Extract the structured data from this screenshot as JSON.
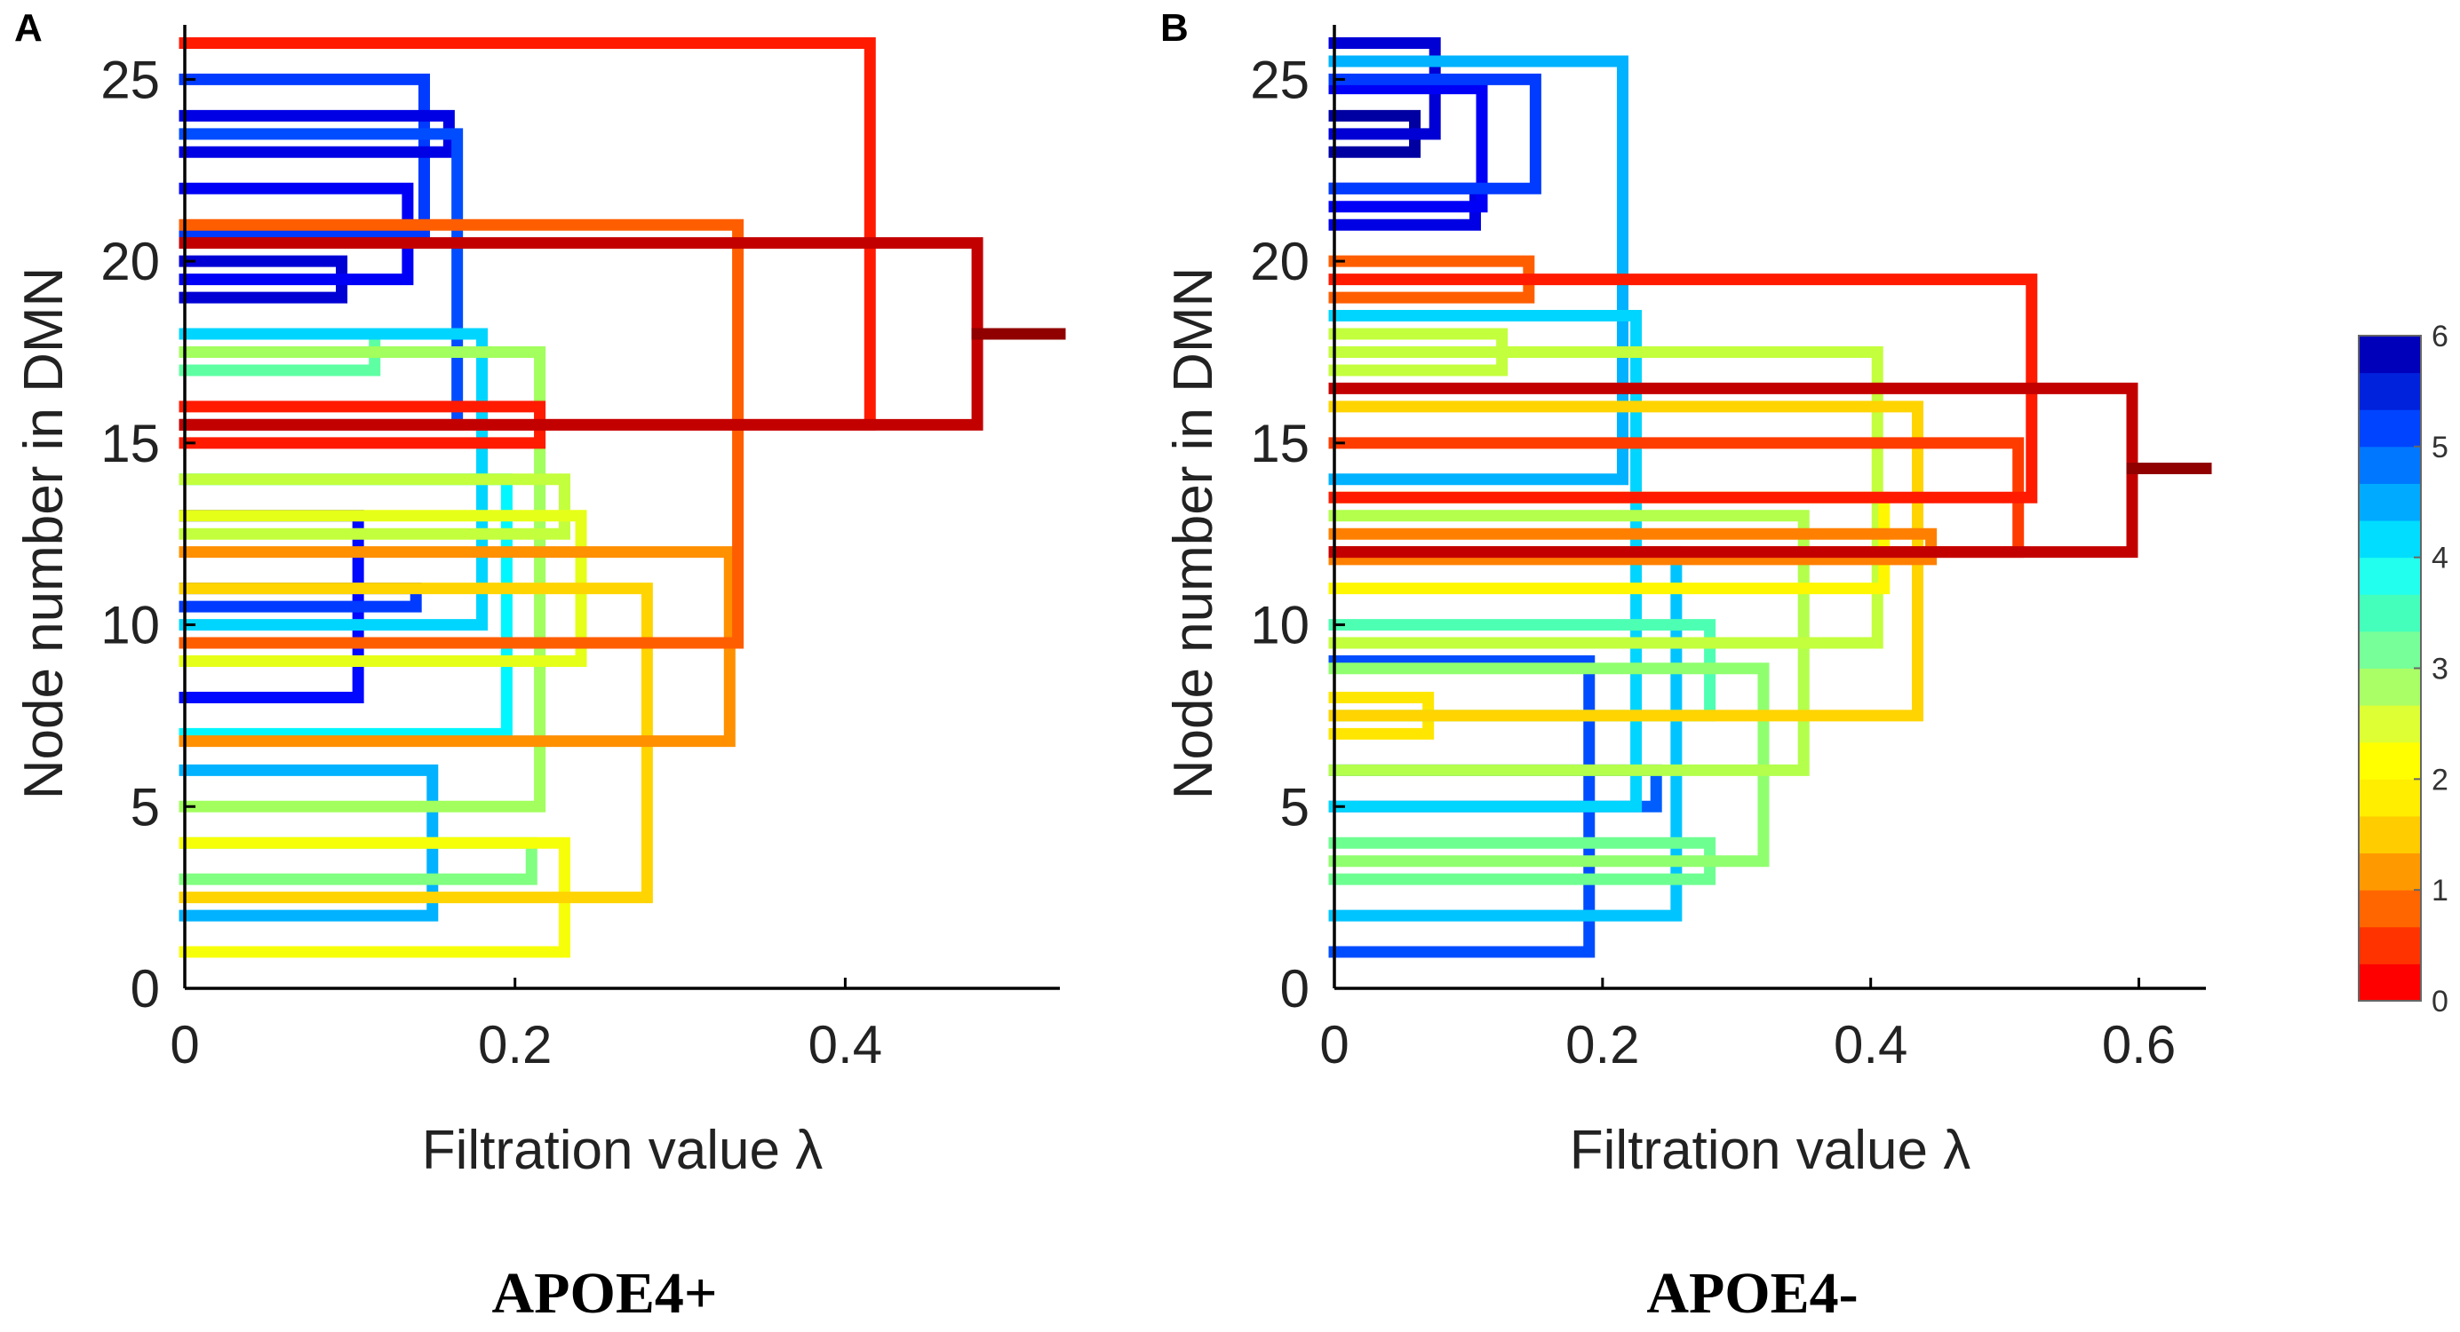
{
  "chart_data": [
    {
      "type": "dendrogram",
      "panel": "A",
      "title": "APOE4+",
      "xlabel": "Filtration value λ",
      "ylabel": "Node number in DMN",
      "xlim": [
        0,
        0.53
      ],
      "ylim": [
        0,
        26.5
      ],
      "xticks": [
        0,
        0.2,
        0.4
      ],
      "xtick_labels": [
        "0",
        "0.2",
        "0.4"
      ],
      "yticks": [
        0,
        5,
        10,
        15,
        20,
        25
      ],
      "ytick_labels": [
        "0",
        "5",
        "10",
        "15",
        "20",
        "25"
      ],
      "leaf_nodes": [
        1,
        2,
        3,
        4,
        5,
        6,
        7,
        8,
        9,
        10,
        11,
        12,
        13,
        14,
        15,
        16,
        17,
        18,
        19,
        20,
        21,
        22,
        23,
        24,
        25,
        26
      ],
      "merges": [
        {
          "y1": 20,
          "y2": 19,
          "lambda": 0.095,
          "level": 5.5
        },
        {
          "y1": 13,
          "y2": 8,
          "lambda": 0.105,
          "level": 5.2
        },
        {
          "y1": 18,
          "y2": 17,
          "lambda": 0.115,
          "level": 3.2
        },
        {
          "y1": 22,
          "y2": 19.5,
          "lambda": 0.135,
          "level": 5.3
        },
        {
          "y1": 11,
          "y2": 10.5,
          "lambda": 0.14,
          "level": 4.9
        },
        {
          "y1": 25,
          "y2": 20.75,
          "lambda": 0.145,
          "level": 4.9
        },
        {
          "y1": 24,
          "y2": 23,
          "lambda": 0.16,
          "level": 5.4
        },
        {
          "y1": 6,
          "y2": 2,
          "lambda": 0.15,
          "level": 4.2
        },
        {
          "y1": 23.5,
          "y2": 15.5,
          "lambda": 0.165,
          "level": 4.8
        },
        {
          "y1": 18,
          "y2": 10,
          "lambda": 0.18,
          "level": 4.0
        },
        {
          "y1": 14,
          "y2": 7,
          "lambda": 0.195,
          "level": 3.8
        },
        {
          "y1": 4,
          "y2": 3,
          "lambda": 0.21,
          "level": 3.0
        },
        {
          "y1": 5,
          "y2": 17.5,
          "lambda": 0.215,
          "level": 2.8
        },
        {
          "y1": 16,
          "y2": 15,
          "lambda": 0.215,
          "level": 0.9
        },
        {
          "y1": 14,
          "y2": 12.5,
          "lambda": 0.23,
          "level": 2.6
        },
        {
          "y1": 13,
          "y2": 9,
          "lambda": 0.24,
          "level": 2.4
        },
        {
          "y1": 4,
          "y2": 1,
          "lambda": 0.23,
          "level": 2.3
        },
        {
          "y1": 11,
          "y2": 2.5,
          "lambda": 0.28,
          "level": 2.0
        },
        {
          "y1": 12,
          "y2": 6.8,
          "lambda": 0.33,
          "level": 1.6
        },
        {
          "y1": 21,
          "y2": 9.5,
          "lambda": 0.335,
          "level": 1.3
        },
        {
          "y1": 26,
          "y2": 15.5,
          "lambda": 0.415,
          "level": 0.9
        },
        {
          "y1": 20.5,
          "y2": 15.5,
          "lambda": 0.48,
          "level": 0.4
        }
      ],
      "root": {
        "y": 18,
        "lambda_end": 0.53,
        "level": 0.1
      }
    },
    {
      "type": "dendrogram",
      "panel": "B",
      "title": "APOE4-",
      "xlabel": "Filtration value λ",
      "ylabel": "Node number in DMN",
      "xlim": [
        0,
        0.65
      ],
      "ylim": [
        0,
        26.5
      ],
      "xticks": [
        0,
        0.2,
        0.4,
        0.6
      ],
      "xtick_labels": [
        "0",
        "0.2",
        "0.4",
        "0.6"
      ],
      "yticks": [
        0,
        5,
        10,
        15,
        20,
        25
      ],
      "ytick_labels": [
        "0",
        "5",
        "10",
        "15",
        "20",
        "25"
      ],
      "leaf_nodes": [
        1,
        2,
        3,
        4,
        5,
        6,
        7,
        8,
        9,
        10,
        11,
        12,
        13,
        14,
        15,
        16,
        17,
        18,
        19,
        20,
        21,
        22,
        23,
        24,
        25,
        26
      ],
      "merges": [
        {
          "y1": 24,
          "y2": 23,
          "lambda": 0.06,
          "level": 5.8
        },
        {
          "y1": 26,
          "y2": 23.5,
          "lambda": 0.075,
          "level": 5.5
        },
        {
          "y1": 8,
          "y2": 7,
          "lambda": 0.07,
          "level": 2.1
        },
        {
          "y1": 22,
          "y2": 21,
          "lambda": 0.105,
          "level": 5.4
        },
        {
          "y1": 24.75,
          "y2": 21.5,
          "lambda": 0.11,
          "level": 5.3
        },
        {
          "y1": 18,
          "y2": 17,
          "lambda": 0.125,
          "level": 2.6
        },
        {
          "y1": 25,
          "y2": 22,
          "lambda": 0.15,
          "level": 4.9
        },
        {
          "y1": 20,
          "y2": 19,
          "lambda": 0.145,
          "level": 1.3
        },
        {
          "y1": 9,
          "y2": 1,
          "lambda": 0.19,
          "level": 4.8
        },
        {
          "y1": 6,
          "y2": 5,
          "lambda": 0.24,
          "level": 4.7
        },
        {
          "y1": 25.5,
          "y2": 14,
          "lambda": 0.215,
          "level": 4.2
        },
        {
          "y1": 18.5,
          "y2": 5,
          "lambda": 0.225,
          "level": 4.0
        },
        {
          "y1": 12,
          "y2": 2,
          "lambda": 0.255,
          "level": 4.1
        },
        {
          "y1": 10,
          "y2": 7.5,
          "lambda": 0.28,
          "level": 3.3
        },
        {
          "y1": 4,
          "y2": 3,
          "lambda": 0.28,
          "level": 3.1
        },
        {
          "y1": 8.8,
          "y2": 3.5,
          "lambda": 0.32,
          "level": 2.9
        },
        {
          "y1": 13,
          "y2": 6,
          "lambda": 0.35,
          "level": 2.7
        },
        {
          "y1": 17.5,
          "y2": 9.5,
          "lambda": 0.405,
          "level": 2.6
        },
        {
          "y1": 13.5,
          "y2": 11,
          "lambda": 0.41,
          "level": 2.2
        },
        {
          "y1": 16,
          "y2": 7.5,
          "lambda": 0.435,
          "level": 2.0
        },
        {
          "y1": 12.5,
          "y2": 11.8,
          "lambda": 0.445,
          "level": 1.5
        },
        {
          "y1": 15,
          "y2": 12,
          "lambda": 0.51,
          "level": 1.1
        },
        {
          "y1": 19.5,
          "y2": 13.5,
          "lambda": 0.52,
          "level": 0.9
        },
        {
          "y1": 16.5,
          "y2": 12,
          "lambda": 0.595,
          "level": 0.4
        }
      ],
      "root": {
        "y": 14.3,
        "lambda_end": 0.65,
        "level": 0.1
      }
    }
  ],
  "colorbar": {
    "min": 0,
    "max": 6,
    "tick_labels": [
      "0",
      "1",
      "2",
      "3",
      "4",
      "5",
      "6"
    ],
    "colormap": "jet",
    "colors": [
      "#ff0000",
      "#ff3300",
      "#ff6600",
      "#ff9900",
      "#ffcc00",
      "#ffee00",
      "#ffff00",
      "#ddff33",
      "#aaff66",
      "#77ff99",
      "#44ffbb",
      "#22ffee",
      "#00ddff",
      "#00aaff",
      "#0077ff",
      "#0044ff",
      "#0022dd",
      "#0000bb"
    ]
  }
}
